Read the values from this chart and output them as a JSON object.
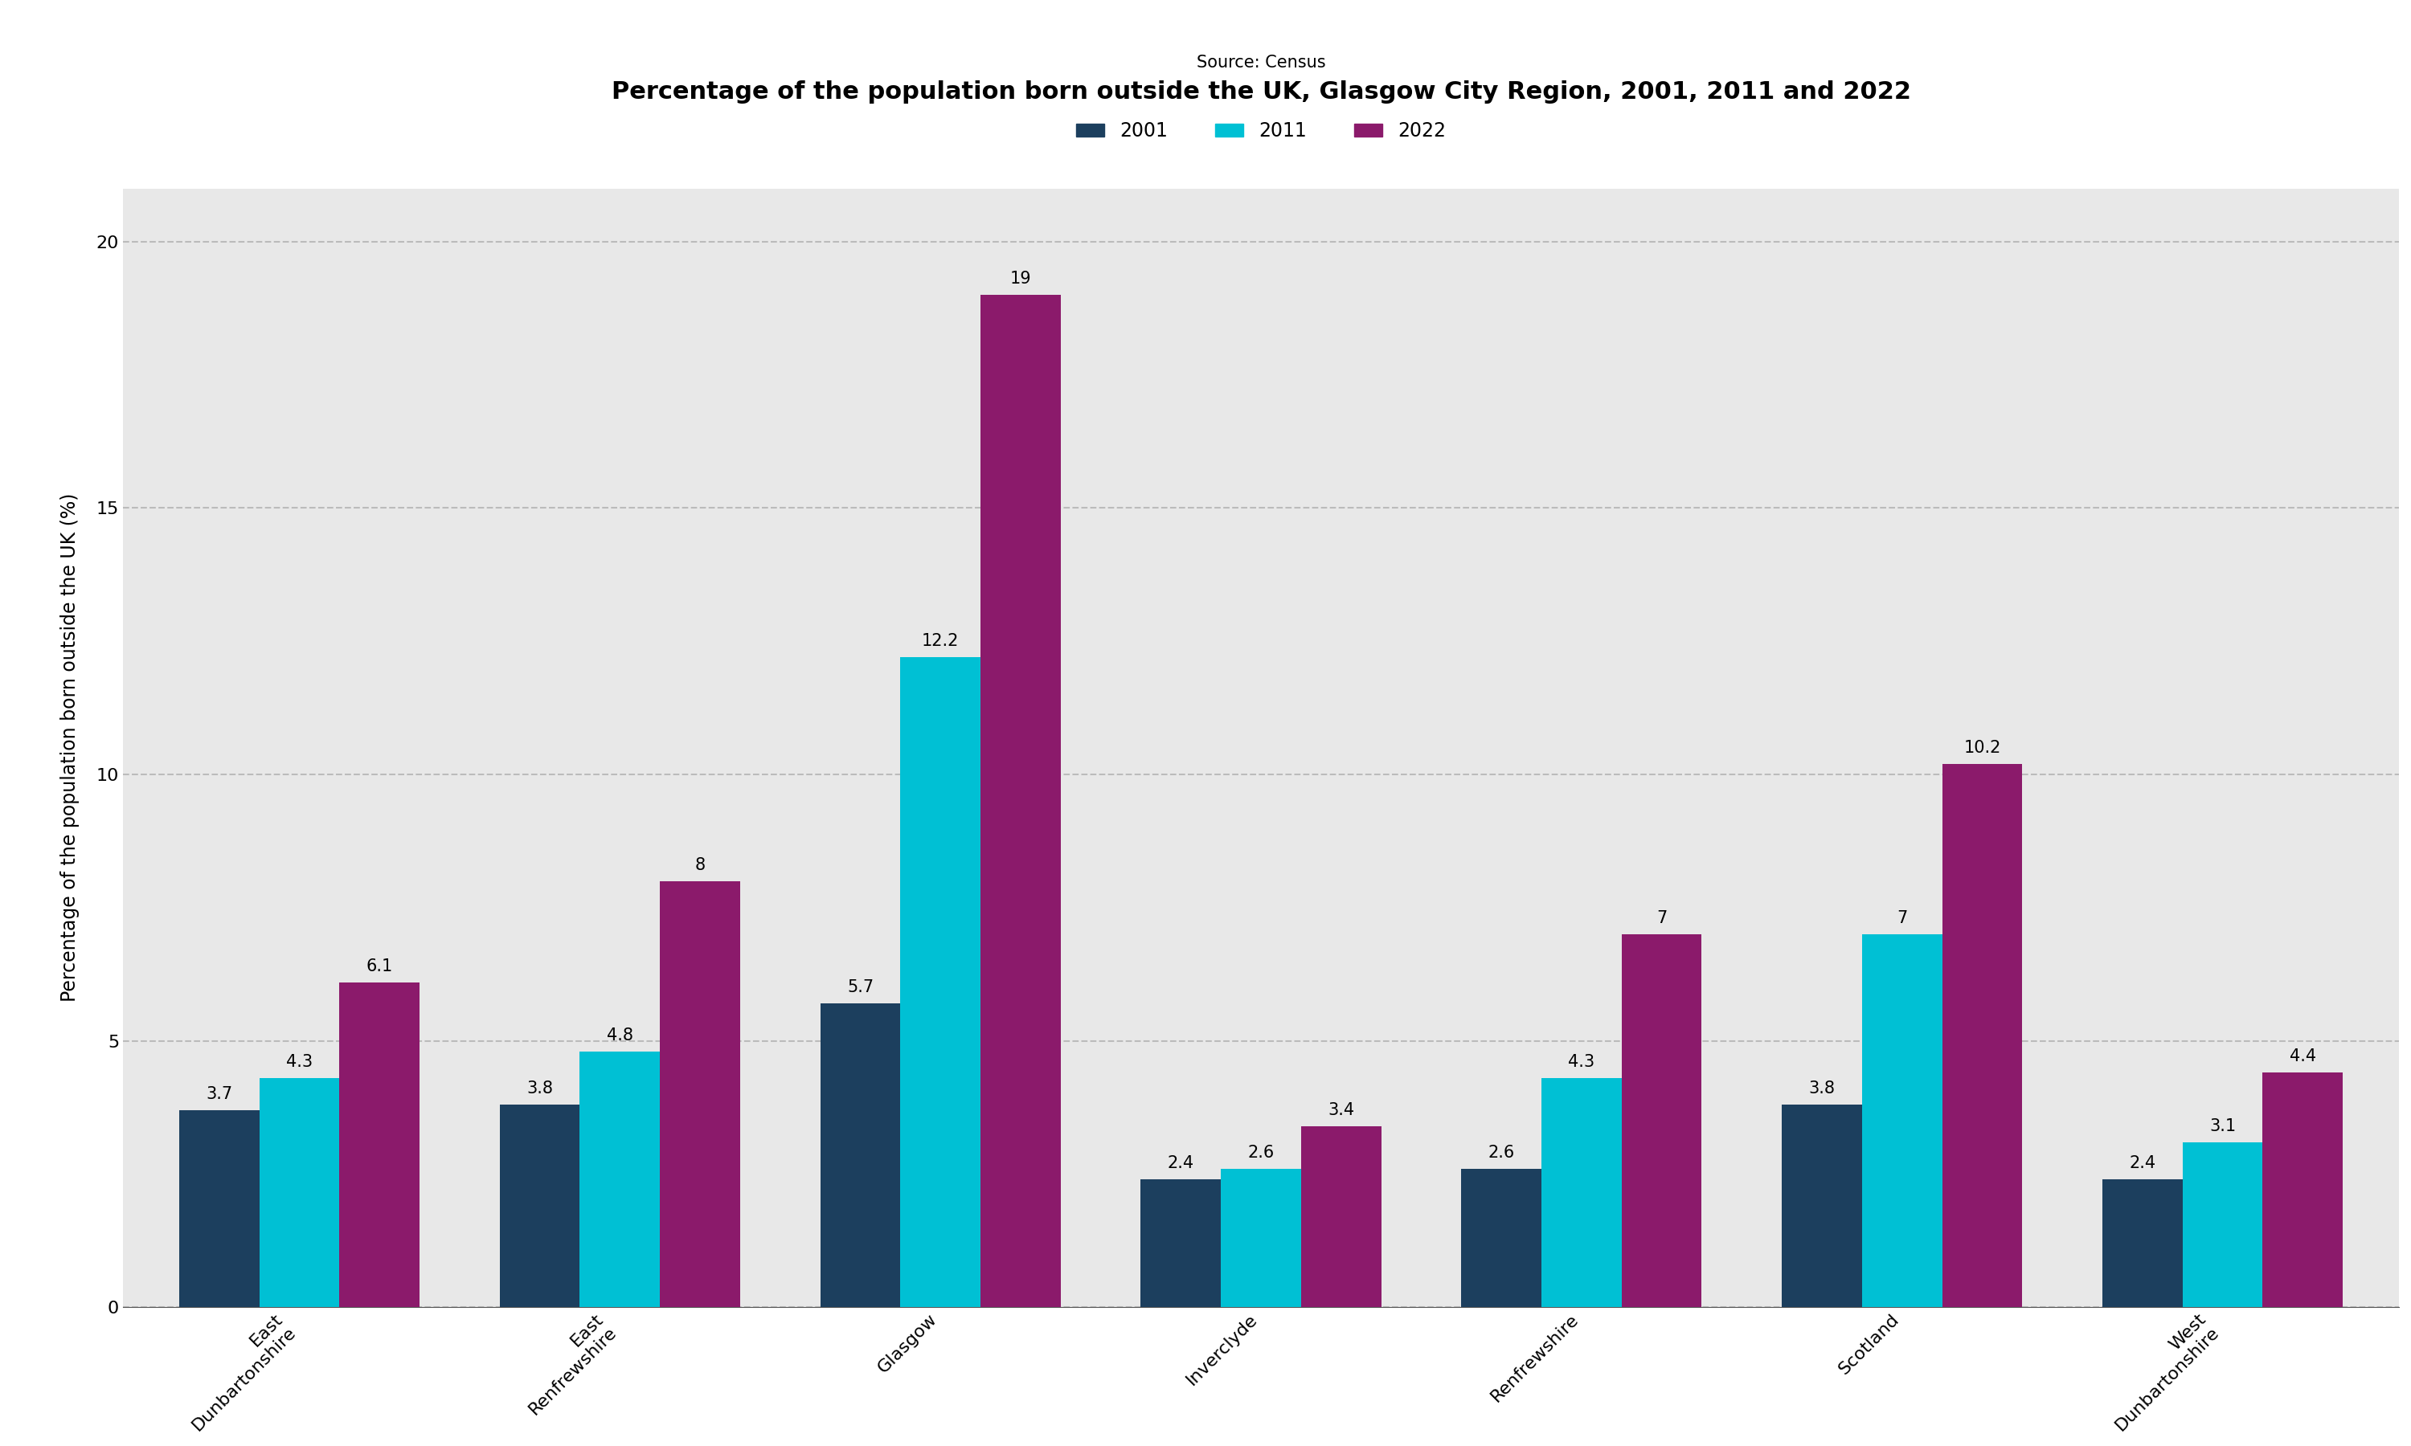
{
  "title": "Percentage of the population born outside the UK, Glasgow City Region, 2001, 2011 and 2022",
  "source": "Source: Census",
  "ylabel": "Percentage of the population born outside the UK (%)",
  "categories": [
    "East\nDunbartonshire",
    "East\nRenfrewshire",
    "Glasgow",
    "Inverclyde",
    "Renfrewshire",
    "Scotland",
    "West\nDunbartonshire"
  ],
  "years": [
    "2001",
    "2011",
    "2022"
  ],
  "colors": [
    "#1c3f5e",
    "#00c0d4",
    "#8b1a6b"
  ],
  "data": {
    "2001": [
      3.7,
      3.8,
      5.7,
      2.4,
      2.6,
      3.8,
      2.4
    ],
    "2011": [
      4.3,
      4.8,
      12.2,
      2.6,
      4.3,
      7.0,
      3.1
    ],
    "2022": [
      6.1,
      8.0,
      19.0,
      3.4,
      7.0,
      10.2,
      4.4
    ]
  },
  "bar_labels": {
    "2001": [
      "3.7",
      "3.8",
      "5.7",
      "2.4",
      "2.6",
      "3.8",
      "2.4"
    ],
    "2011": [
      "4.3",
      "4.8",
      "12.2",
      "2.6",
      "4.3",
      "7",
      "3.1"
    ],
    "2022": [
      "6.1",
      "8",
      "19",
      "3.4",
      "7",
      "10.2",
      "4.4"
    ]
  },
  "ylim": [
    0,
    21
  ],
  "yticks": [
    0,
    5,
    10,
    15,
    20
  ],
  "outer_background": "#ffffff",
  "plot_background": "#e8e8e8",
  "title_fontsize": 22,
  "label_fontsize": 17,
  "tick_fontsize": 16,
  "legend_fontsize": 17,
  "source_fontsize": 15,
  "bar_label_fontsize": 15
}
